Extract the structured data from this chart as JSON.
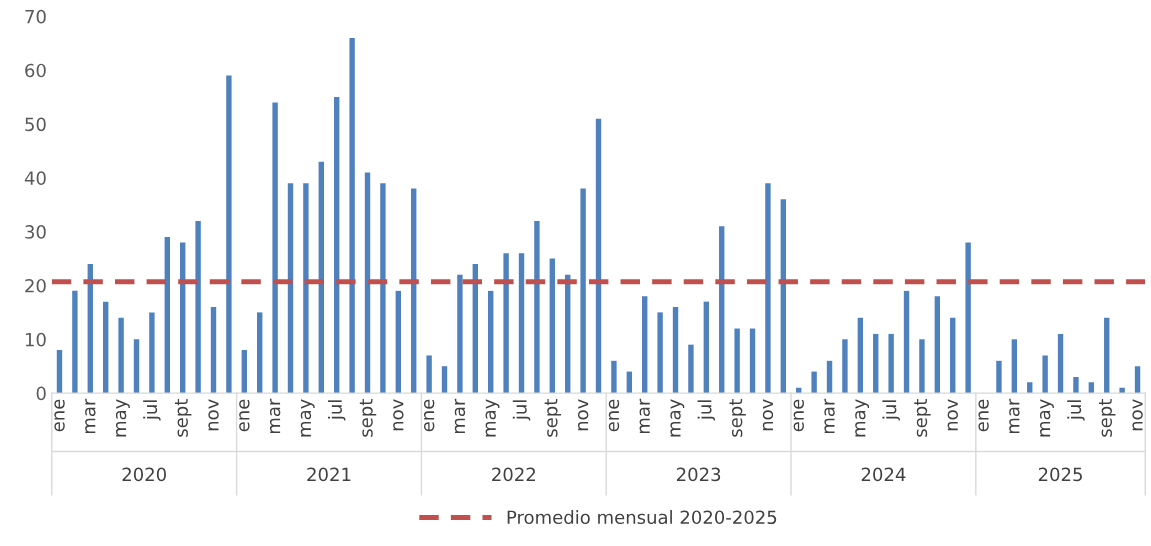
{
  "chart_data": {
    "type": "bar",
    "categories": [
      "ene",
      null,
      "mar",
      null,
      "may",
      null,
      "jul",
      null,
      "sept",
      null,
      "nov",
      null,
      "ene",
      null,
      "mar",
      null,
      "may",
      null,
      "jul",
      null,
      "sept",
      null,
      "nov",
      null,
      "ene",
      null,
      "mar",
      null,
      "may",
      null,
      "jul",
      null,
      "sept",
      null,
      "nov",
      null,
      "ene",
      null,
      "mar",
      null,
      "may",
      null,
      "jul",
      null,
      "sept",
      null,
      "nov",
      null,
      "ene",
      null,
      "mar",
      null,
      "may",
      null,
      "jul",
      null,
      "sept",
      null,
      "nov",
      null,
      "ene",
      null,
      "mar",
      null,
      "may",
      null,
      "jul",
      null,
      "sept",
      null,
      "nov"
    ],
    "values": [
      8,
      19,
      24,
      17,
      14,
      10,
      15,
      29,
      28,
      32,
      16,
      59,
      8,
      15,
      54,
      39,
      39,
      43,
      55,
      66,
      41,
      39,
      19,
      38,
      7,
      5,
      22,
      24,
      19,
      26,
      26,
      32,
      25,
      22,
      38,
      51,
      6,
      4,
      18,
      15,
      16,
      9,
      17,
      31,
      12,
      12,
      39,
      36,
      1,
      4,
      6,
      10,
      14,
      11,
      11,
      19,
      10,
      18,
      14,
      28,
      0,
      6,
      10,
      2,
      7,
      11,
      3,
      2,
      14,
      1,
      5
    ],
    "color": "#4f81bd",
    "ylim": [
      0,
      70
    ],
    "yticks": [
      0,
      10,
      20,
      30,
      40,
      50,
      60,
      70
    ],
    "ref_lines": [
      {
        "axis": "y",
        "value": 20.7,
        "label": "Promedio mensual 2020-2025",
        "color": "#c0504d",
        "line_style": "dashed"
      }
    ],
    "annotations": [
      "2020",
      "2021",
      "2022",
      "2023",
      "2024",
      "2025"
    ],
    "grid": false,
    "legend": "bottom"
  }
}
